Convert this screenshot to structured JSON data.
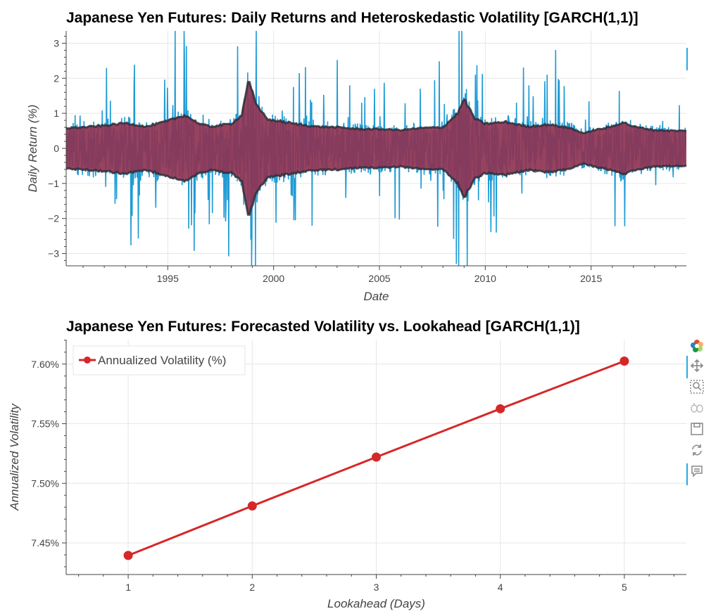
{
  "chart_data": [
    {
      "type": "line",
      "title": "Japanese Yen Futures: Daily Returns and Heteroskedastic Volatility [GARCH(1,1)]",
      "xlabel": "Date",
      "ylabel": "Daily Return (%)",
      "xlim": [
        1990.2,
        2019.5
      ],
      "ylim": [
        -3.35,
        3.35
      ],
      "xticks": [
        1995,
        2000,
        2005,
        2010,
        2015
      ],
      "yticks": [
        3,
        2,
        1,
        0,
        -1,
        -2,
        -3
      ],
      "ytick_labels": [
        "3",
        "2",
        "1",
        "0",
        "−1",
        "−2",
        "−3"
      ],
      "grid": true,
      "series": [
        {
          "kind": "returns",
          "color": "#1f9bd4",
          "description_points": {
            "x": [
              1990.2,
              1995,
              1999,
              2008.8,
              2015,
              2019.5
            ],
            "abs_max": [
              1.5,
              2.5,
              3.3,
              3.3,
              2.2,
              1.5
            ]
          }
        },
        {
          "kind": "volatility_band",
          "fill": "#8e3352",
          "edge": "#2f2f3a",
          "x": [
            1990.2,
            1991,
            1992,
            1993,
            1994,
            1995,
            1995.8,
            1996.5,
            1997,
            1998,
            1998.5,
            1998.8,
            1999.2,
            1999.8,
            2000,
            2001,
            2002,
            2003,
            2004,
            2005,
            2006,
            2007,
            2008,
            2008.7,
            2009,
            2009.5,
            2010,
            2011,
            2012,
            2013,
            2014,
            2014.7,
            2015,
            2016,
            2016.5,
            2017,
            2018,
            2019,
            2019.5
          ],
          "sigma": [
            0.58,
            0.6,
            0.65,
            0.72,
            0.62,
            0.78,
            0.95,
            0.7,
            0.62,
            0.7,
            0.95,
            1.95,
            1.2,
            0.8,
            0.8,
            0.7,
            0.62,
            0.6,
            0.55,
            0.55,
            0.52,
            0.58,
            0.6,
            1.0,
            1.4,
            0.85,
            0.7,
            0.75,
            0.62,
            0.68,
            0.58,
            0.42,
            0.5,
            0.62,
            0.75,
            0.62,
            0.52,
            0.5,
            0.5
          ]
        }
      ]
    },
    {
      "type": "line",
      "title": "Japanese Yen Futures: Forecasted Volatility vs. Lookahead [GARCH(1,1)]",
      "xlabel": "Lookahead (Days)",
      "ylabel": "Annualized Volatility",
      "xlim": [
        0.5,
        5.5
      ],
      "ylim": [
        7.4235,
        7.6205
      ],
      "xticks": [
        1,
        2,
        3,
        4,
        5
      ],
      "yticks": [
        7.6,
        7.55,
        7.5,
        7.45
      ],
      "ytick_labels": [
        "7.60%",
        "7.55%",
        "7.50%",
        "7.45%"
      ],
      "grid": true,
      "legend": {
        "label": "Annualized Volatility (%)",
        "placement": "top-left"
      },
      "series": [
        {
          "name": "Annualized Volatility (%)",
          "color": "#d62728",
          "x": [
            1,
            2,
            3,
            4,
            5
          ],
          "values": [
            7.4395,
            7.481,
            7.522,
            7.5625,
            7.6025
          ]
        }
      ]
    }
  ],
  "toolbar": {
    "items": [
      "bokeh-logo-icon",
      "pan-icon",
      "box-zoom-icon",
      "wheel-zoom-icon",
      "save-icon",
      "reset-icon",
      "hover-icon"
    ]
  }
}
